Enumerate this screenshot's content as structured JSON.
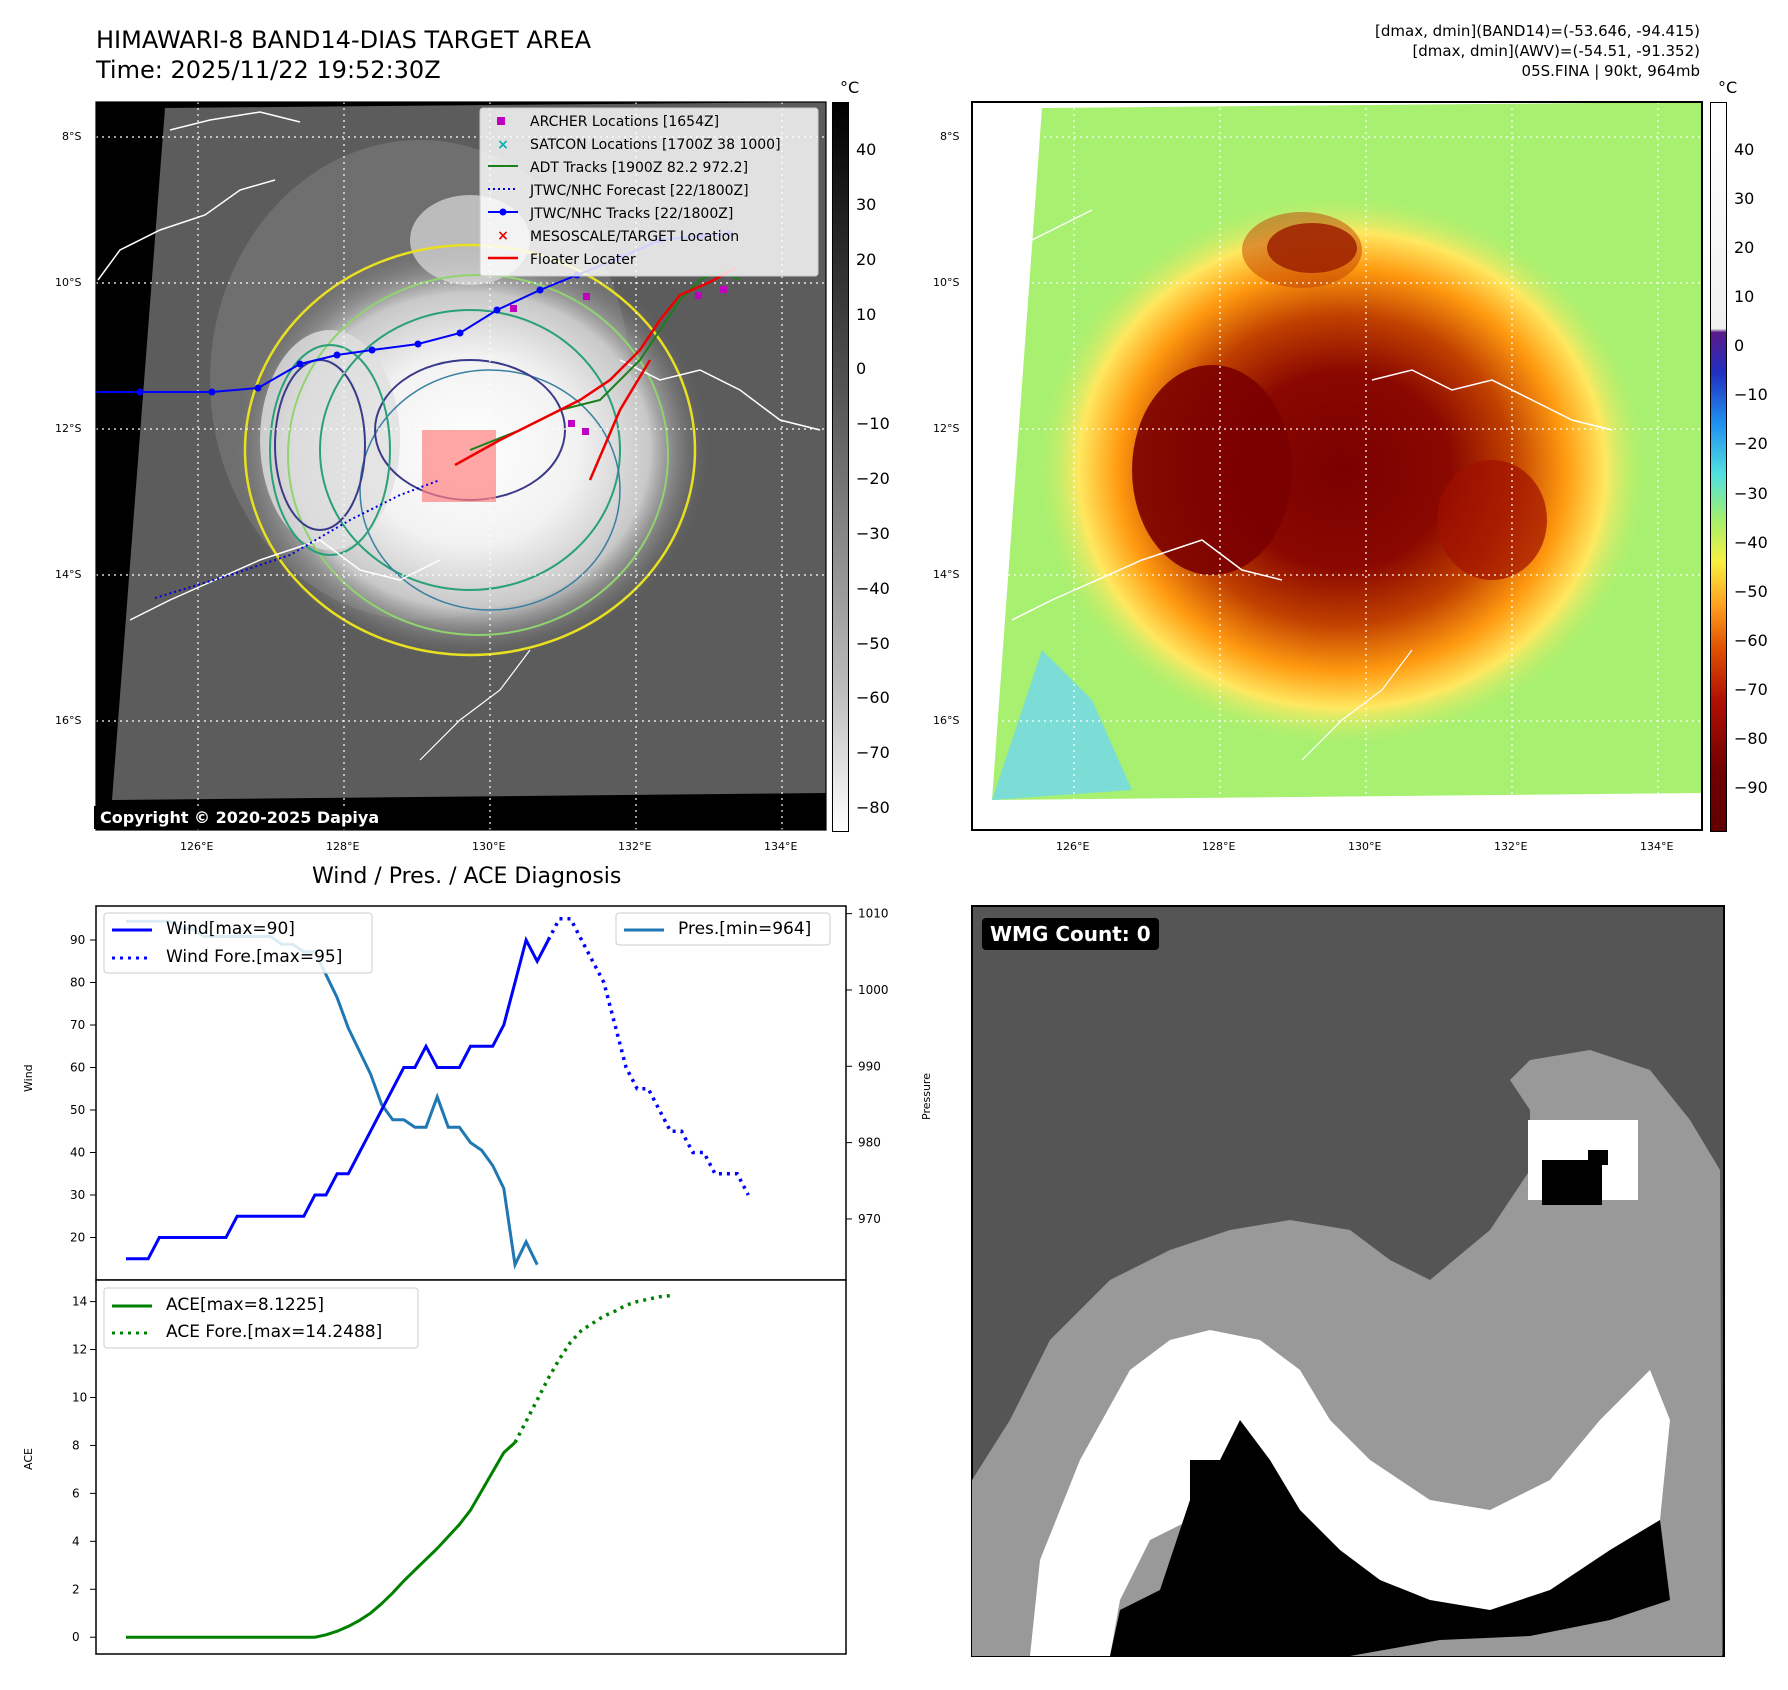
{
  "header": {
    "title_line1": "HIMAWARI-8 BAND14-DIAS TARGET AREA",
    "title_line2": "Time: 2025/11/22 19:52:30Z",
    "info_line1": "[dmax, dmin](BAND14)=(-53.646, -94.415)",
    "info_line2": "[dmax, dmin](AWV)=(-54.51, -91.352)",
    "info_line3": "05S.FINA | 90kt, 964mb"
  },
  "map": {
    "lat_ticks": [
      "8°S",
      "10°S",
      "12°S",
      "14°S",
      "16°S"
    ],
    "lon_ticks": [
      "126°E",
      "128°E",
      "130°E",
      "132°E",
      "134°E"
    ],
    "copyright": "Copyright © 2020-2025 Dapiya",
    "legend": [
      {
        "label": "ARCHER Locations [1654Z]",
        "marker": "square",
        "color": "#c000c0"
      },
      {
        "label": "SATCON Locations [1700Z 38 1000]",
        "marker": "x",
        "color": "#00b0b0"
      },
      {
        "label": "ADT Tracks [1900Z 82.2 972.2]",
        "marker": "line",
        "color": "#1a7f1a"
      },
      {
        "label": "JTWC/NHC Forecast [22/1800Z]",
        "marker": "dotted",
        "color": "#0000dd"
      },
      {
        "label": "JTWC/NHC Tracks [22/1800Z]",
        "marker": "line-dot",
        "color": "#0000ff"
      },
      {
        "label": "MESOSCALE/TARGET Location",
        "marker": "x",
        "color": "#ee0000"
      },
      {
        "label": "Floater Locater",
        "marker": "line",
        "color": "#ee0000"
      }
    ]
  },
  "colorbar_gray": {
    "unit": "°C",
    "ticks": [
      "40",
      "30",
      "20",
      "10",
      "0",
      "−10",
      "−20",
      "−30",
      "−40",
      "−50",
      "−60",
      "−70",
      "−80"
    ]
  },
  "colorbar_color": {
    "unit": "°C",
    "ticks": [
      "40",
      "30",
      "20",
      "10",
      "0",
      "−10",
      "−20",
      "−30",
      "−40",
      "−50",
      "−60",
      "−70",
      "−80",
      "−90"
    ]
  },
  "wmg": {
    "label": "WMG Count: 0"
  },
  "chart_data": [
    {
      "type": "line",
      "title": "Wind / Pres. / ACE Diagnosis",
      "ylabel": "Wind",
      "ylabel_right": "Pressure",
      "ylim": [
        10,
        98
      ],
      "ylim_right": [
        962,
        1011
      ],
      "wind_ticks": [
        20,
        30,
        40,
        50,
        60,
        70,
        80,
        90
      ],
      "pressure_ticks": [
        970,
        980,
        990,
        1000,
        1010
      ],
      "legend_left": [
        "Wind[max=90]",
        "Wind Fore.[max=95]"
      ],
      "legend_right": [
        "Pres.[min=964]"
      ],
      "series": [
        {
          "name": "Wind[max=90]",
          "color": "#0000ff",
          "style": "solid",
          "values": [
            15,
            15,
            15,
            20,
            20,
            20,
            20,
            20,
            20,
            20,
            25,
            25,
            25,
            25,
            25,
            25,
            25,
            30,
            30,
            35,
            35,
            40,
            45,
            50,
            55,
            60,
            60,
            65,
            60,
            60,
            60,
            65,
            65,
            65,
            70,
            80,
            90,
            85,
            90
          ]
        },
        {
          "name": "Wind Fore.[max=95]",
          "color": "#0000ff",
          "style": "dotted",
          "values": [
            90,
            95,
            95,
            90,
            85,
            80,
            70,
            60,
            55,
            55,
            50,
            45,
            45,
            40,
            40,
            35,
            35,
            35,
            30
          ]
        },
        {
          "name": "Pres.[min=964]",
          "color": "#1f77b4",
          "style": "solid",
          "values": [
            1009,
            1009,
            1009,
            1009,
            1009,
            1008,
            1008,
            1007,
            1007,
            1007,
            1007,
            1007,
            1007,
            1007,
            1006,
            1006,
            1005,
            1005,
            1002,
            999,
            995,
            992,
            989,
            985,
            983,
            983,
            982,
            982,
            986,
            982,
            982,
            980,
            979,
            977,
            974,
            964,
            967,
            964
          ]
        }
      ]
    },
    {
      "type": "line",
      "ylabel": "ACE",
      "ylim": [
        -0.7,
        14.9
      ],
      "ace_ticks": [
        0,
        2,
        4,
        6,
        8,
        10,
        12,
        14
      ],
      "legend": [
        "ACE[max=8.1225]",
        "ACE Fore.[max=14.2488]"
      ],
      "series": [
        {
          "name": "ACE[max=8.1225]",
          "color": "#008000",
          "style": "solid",
          "values": [
            0,
            0,
            0,
            0,
            0,
            0,
            0,
            0,
            0,
            0,
            0,
            0,
            0,
            0,
            0,
            0,
            0,
            0,
            0.1,
            0.25,
            0.45,
            0.7,
            1.0,
            1.4,
            1.85,
            2.35,
            2.8,
            3.25,
            3.7,
            4.2,
            4.7,
            5.3,
            6.1,
            6.9,
            7.7,
            8.12
          ]
        },
        {
          "name": "ACE Fore.[max=14.2488]",
          "color": "#008000",
          "style": "dotted",
          "values": [
            8.12,
            9.0,
            9.9,
            10.8,
            11.6,
            12.3,
            12.8,
            13.1,
            13.4,
            13.6,
            13.85,
            14.0,
            14.1,
            14.2,
            14.25
          ]
        }
      ]
    }
  ]
}
